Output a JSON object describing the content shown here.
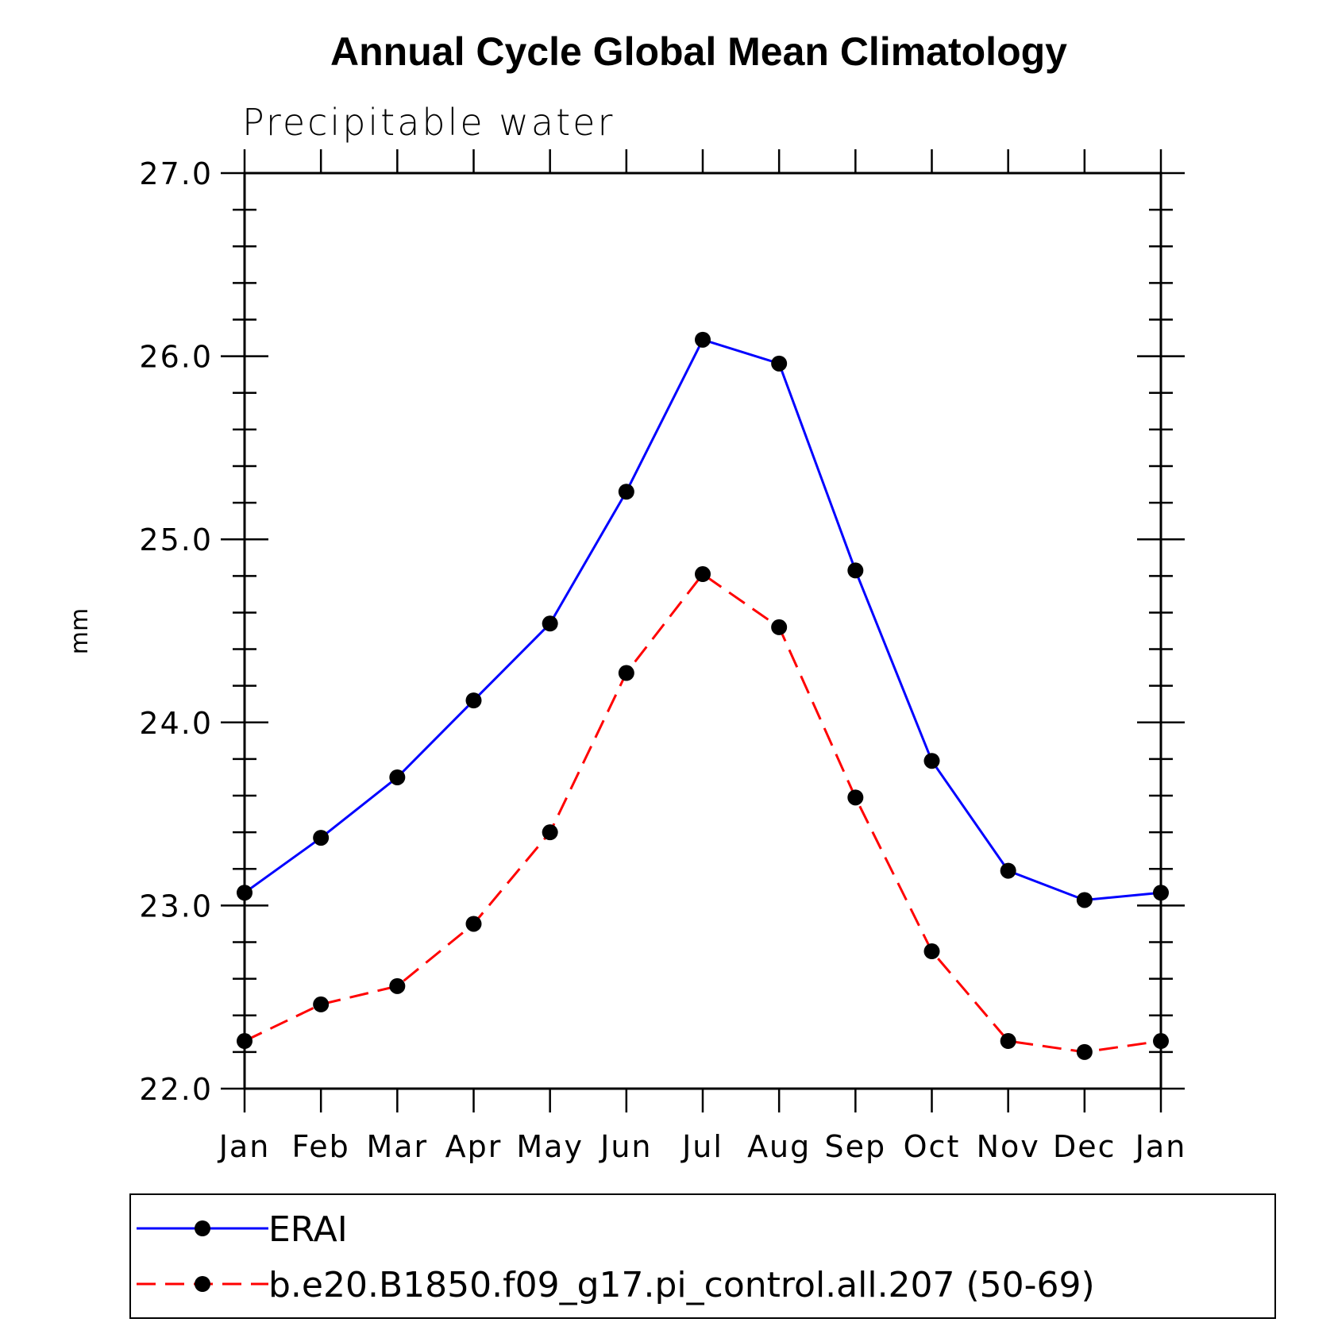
{
  "chart_data": {
    "type": "line",
    "title": "Annual Cycle Global Mean Climatology",
    "subtitle": "Precipitable water",
    "xlabel": "",
    "ylabel": "mm",
    "categories": [
      "Jan",
      "Feb",
      "Mar",
      "Apr",
      "May",
      "Jun",
      "Jul",
      "Aug",
      "Sep",
      "Oct",
      "Nov",
      "Dec",
      "Jan"
    ],
    "ylim": [
      22.0,
      27.0
    ],
    "yticks": [
      "22.0",
      "23.0",
      "24.0",
      "25.0",
      "26.0",
      "27.0"
    ],
    "series": [
      {
        "name": "ERAI",
        "color": "#0000ff",
        "dash": "solid",
        "marker": "filled-circle",
        "values": [
          23.07,
          23.37,
          23.7,
          24.12,
          24.54,
          25.26,
          26.09,
          25.96,
          24.83,
          23.79,
          23.19,
          23.03,
          23.07
        ]
      },
      {
        "name": "b.e20.B1850.f09_g17.pi_control.all.207 (50-69)",
        "color": "#ff0000",
        "dash": "dashed",
        "marker": "filled-circle",
        "values": [
          22.26,
          22.46,
          22.56,
          22.9,
          23.4,
          24.27,
          24.81,
          24.52,
          23.59,
          22.75,
          22.26,
          22.2,
          22.26
        ]
      }
    ],
    "grid": false,
    "legend_position": "bottom"
  }
}
